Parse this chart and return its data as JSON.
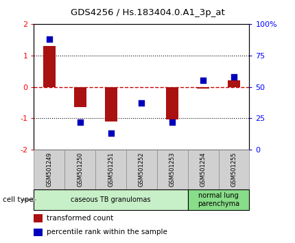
{
  "title": "GDS4256 / Hs.183404.0.A1_3p_at",
  "samples": [
    "GSM501249",
    "GSM501250",
    "GSM501251",
    "GSM501252",
    "GSM501253",
    "GSM501254",
    "GSM501255"
  ],
  "transformed_count": [
    1.3,
    -0.65,
    -1.1,
    -0.02,
    -1.05,
    -0.05,
    0.2
  ],
  "percentile_rank": [
    88,
    22,
    13,
    37,
    22,
    55,
    58
  ],
  "ylim_left": [
    -2,
    2
  ],
  "ylim_right": [
    0,
    100
  ],
  "yticks_left": [
    -2,
    -1,
    0,
    1,
    2
  ],
  "yticks_right": [
    0,
    25,
    50,
    75,
    100
  ],
  "ytick_labels_right": [
    "0",
    "25",
    "50",
    "75",
    "100%"
  ],
  "bar_color": "#aa1111",
  "dot_color": "#0000bb",
  "bar_width": 0.4,
  "dot_size": 30,
  "cell_type_groups": [
    {
      "label": "caseous TB granulomas",
      "indices": [
        0,
        1,
        2,
        3,
        4
      ],
      "color": "#c8f0c8"
    },
    {
      "label": "normal lung\nparenchyma",
      "indices": [
        5,
        6
      ],
      "color": "#88dd88"
    }
  ],
  "cell_type_label": "cell type",
  "legend_items": [
    {
      "color": "#aa1111",
      "label": "transformed count"
    },
    {
      "color": "#0000bb",
      "label": "percentile rank within the sample"
    }
  ],
  "background_color": "#ffffff",
  "plot_bg": "#ffffff",
  "zero_line_color": "#cc0000",
  "sample_box_color": "#d0d0d0",
  "sample_box_edge": "#888888"
}
